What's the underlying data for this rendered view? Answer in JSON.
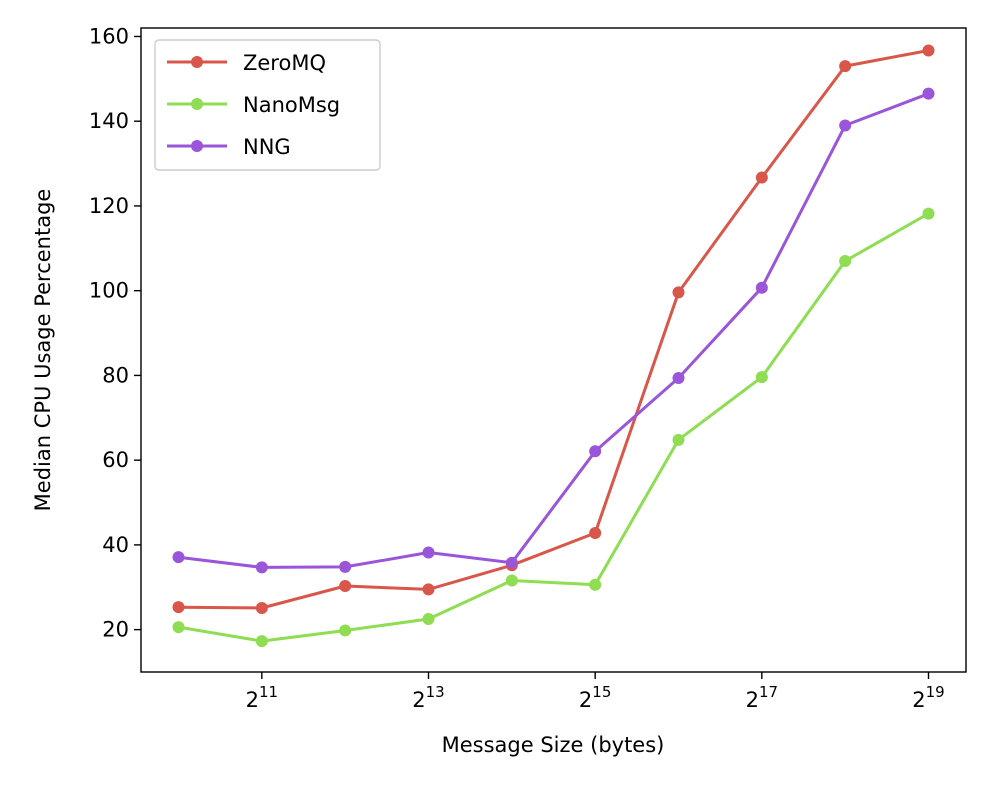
{
  "chart_data": {
    "type": "line",
    "xlabel": "Message Size (bytes)",
    "ylabel": "Median CPU Usage Percentage",
    "x_scale": "log2",
    "x": [
      1024,
      2048,
      4096,
      8192,
      16384,
      32768,
      65536,
      131072,
      262144,
      524288
    ],
    "xticks": [
      {
        "value": 2048,
        "base": "2",
        "exp": "11"
      },
      {
        "value": 8192,
        "base": "2",
        "exp": "13"
      },
      {
        "value": 32768,
        "base": "2",
        "exp": "15"
      },
      {
        "value": 131072,
        "base": "2",
        "exp": "17"
      },
      {
        "value": 524288,
        "base": "2",
        "exp": "19"
      }
    ],
    "yticks": [
      20,
      40,
      60,
      80,
      100,
      120,
      140,
      160
    ],
    "ylim": [
      10,
      162
    ],
    "xlim_exp": [
      9.55,
      19.45
    ],
    "grid": false,
    "legend_position": "top-left",
    "series": [
      {
        "name": "ZeroMQ",
        "color": "#d9574a",
        "values": [
          25.3,
          25.1,
          30.3,
          29.5,
          35.2,
          42.8,
          99.6,
          126.7,
          153.0,
          156.7
        ]
      },
      {
        "name": "NanoMsg",
        "color": "#8edd53",
        "values": [
          20.6,
          17.3,
          19.8,
          22.5,
          31.6,
          30.6,
          64.8,
          79.6,
          107.0,
          118.2
        ]
      },
      {
        "name": "NNG",
        "color": "#9b55d9",
        "values": [
          37.1,
          34.7,
          34.8,
          38.2,
          35.8,
          62.1,
          79.4,
          100.7,
          139.0,
          146.5
        ]
      }
    ]
  }
}
